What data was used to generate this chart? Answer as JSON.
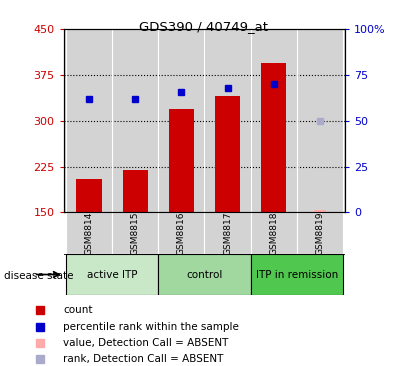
{
  "title": "GDS390 / 40749_at",
  "samples": [
    "GSM8814",
    "GSM8815",
    "GSM8816",
    "GSM8817",
    "GSM8818",
    "GSM8819"
  ],
  "bar_values": [
    205,
    220,
    320,
    340,
    395,
    null
  ],
  "bar_bottom": 150,
  "rank_values": [
    62,
    62,
    66,
    68,
    70,
    null
  ],
  "rank_absent": [
    null,
    null,
    null,
    null,
    null,
    50
  ],
  "absent_value": [
    null,
    null,
    null,
    null,
    null,
    152
  ],
  "ylim_left": [
    150,
    450
  ],
  "ylim_right": [
    0,
    100
  ],
  "yticks_left": [
    150,
    225,
    300,
    375,
    450
  ],
  "yticks_right": [
    0,
    25,
    50,
    75,
    100
  ],
  "yticklabels_right": [
    "0",
    "25",
    "50",
    "75",
    "100%"
  ],
  "groups": [
    {
      "label": "active ITP",
      "samples": [
        0,
        1
      ],
      "color": "#c8e8c8"
    },
    {
      "label": "control",
      "samples": [
        2,
        3
      ],
      "color": "#a0d8a0"
    },
    {
      "label": "ITP in remission",
      "samples": [
        4,
        5
      ],
      "color": "#50c850"
    }
  ],
  "bar_color": "#cc0000",
  "rank_color": "#0000cc",
  "absent_bar_color": "#ffaaaa",
  "absent_rank_color": "#aaaacc",
  "plot_bg": "#d3d3d3",
  "left_tick_color": "#cc0000",
  "right_tick_color": "#0000cc",
  "bar_width": 0.55,
  "legend_items": [
    {
      "label": "count",
      "color": "#cc0000"
    },
    {
      "label": "percentile rank within the sample",
      "color": "#0000cc"
    },
    {
      "label": "value, Detection Call = ABSENT",
      "color": "#ffaaaa"
    },
    {
      "label": "rank, Detection Call = ABSENT",
      "color": "#aaaacc"
    }
  ],
  "disease_state_label": "disease state",
  "grid_yticks": [
    225,
    300,
    375
  ]
}
